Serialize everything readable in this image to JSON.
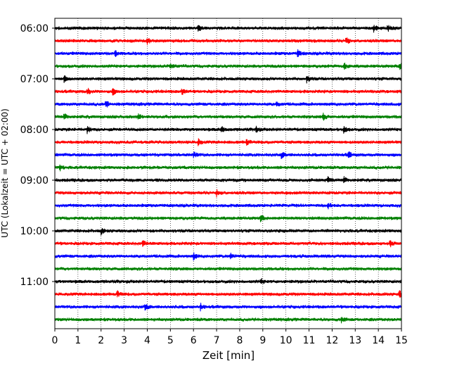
{
  "chart_data": {
    "type": "line",
    "subtype": "helicorder",
    "xlabel": "Zeit  [min]",
    "ylabel": "UTC (Lokalzeit = UTC + 02:00)",
    "xlim": [
      0,
      15
    ],
    "xticks": [
      0,
      1,
      2,
      3,
      4,
      5,
      6,
      7,
      8,
      9,
      10,
      11,
      12,
      13,
      14,
      15
    ],
    "xtick_labels": [
      "0",
      "1",
      "2",
      "3",
      "4",
      "5",
      "6",
      "7",
      "8",
      "9",
      "10",
      "11",
      "12",
      "13",
      "14",
      "15"
    ],
    "ytick_labels": [
      "06:00",
      "07:00",
      "08:00",
      "09:00",
      "10:00",
      "11:00"
    ],
    "trace_interval_min": 15,
    "traces_per_hour": 4,
    "start_time": "06:00",
    "trace_colors": [
      "#000000",
      "#ff0000",
      "#0000ff",
      "#008000"
    ],
    "grid": {
      "x": "dotted",
      "y": "none"
    },
    "series": [
      {
        "start": "06:00",
        "events": [
          6.2,
          13.8,
          14.4
        ]
      },
      {
        "start": "06:15",
        "events": [
          4.0,
          12.6
        ]
      },
      {
        "start": "06:30",
        "events": [
          2.6,
          10.5
        ]
      },
      {
        "start": "06:45",
        "events": [
          5.0,
          12.5,
          14.9
        ]
      },
      {
        "start": "07:00",
        "events": [
          0.4,
          10.9
        ]
      },
      {
        "start": "07:15",
        "events": [
          1.4,
          2.5,
          5.5
        ]
      },
      {
        "start": "07:30",
        "events": [
          2.2,
          9.6
        ]
      },
      {
        "start": "07:45",
        "events": [
          0.4,
          3.6,
          11.6
        ]
      },
      {
        "start": "08:00",
        "events": [
          1.4,
          7.2,
          8.7,
          12.5
        ]
      },
      {
        "start": "08:15",
        "events": [
          6.2,
          8.3
        ]
      },
      {
        "start": "08:30",
        "events": [
          6.0,
          9.8,
          12.7
        ]
      },
      {
        "start": "08:45",
        "events": [
          0.2
        ]
      },
      {
        "start": "09:00",
        "events": [
          11.8,
          12.5
        ]
      },
      {
        "start": "09:15",
        "events": [
          7.0
        ]
      },
      {
        "start": "09:30",
        "events": [
          11.8
        ]
      },
      {
        "start": "09:45",
        "events": [
          8.9
        ]
      },
      {
        "start": "10:00",
        "events": [
          2.0
        ]
      },
      {
        "start": "10:15",
        "events": [
          3.8,
          14.5
        ]
      },
      {
        "start": "10:30",
        "events": [
          6.0,
          7.6
        ]
      },
      {
        "start": "10:45",
        "events": []
      },
      {
        "start": "11:00",
        "events": [
          8.9
        ]
      },
      {
        "start": "11:15",
        "events": [
          2.7,
          14.9
        ]
      },
      {
        "start": "11:30",
        "events": [
          3.9,
          6.3
        ]
      },
      {
        "start": "11:45",
        "events": [
          12.4
        ]
      }
    ]
  }
}
